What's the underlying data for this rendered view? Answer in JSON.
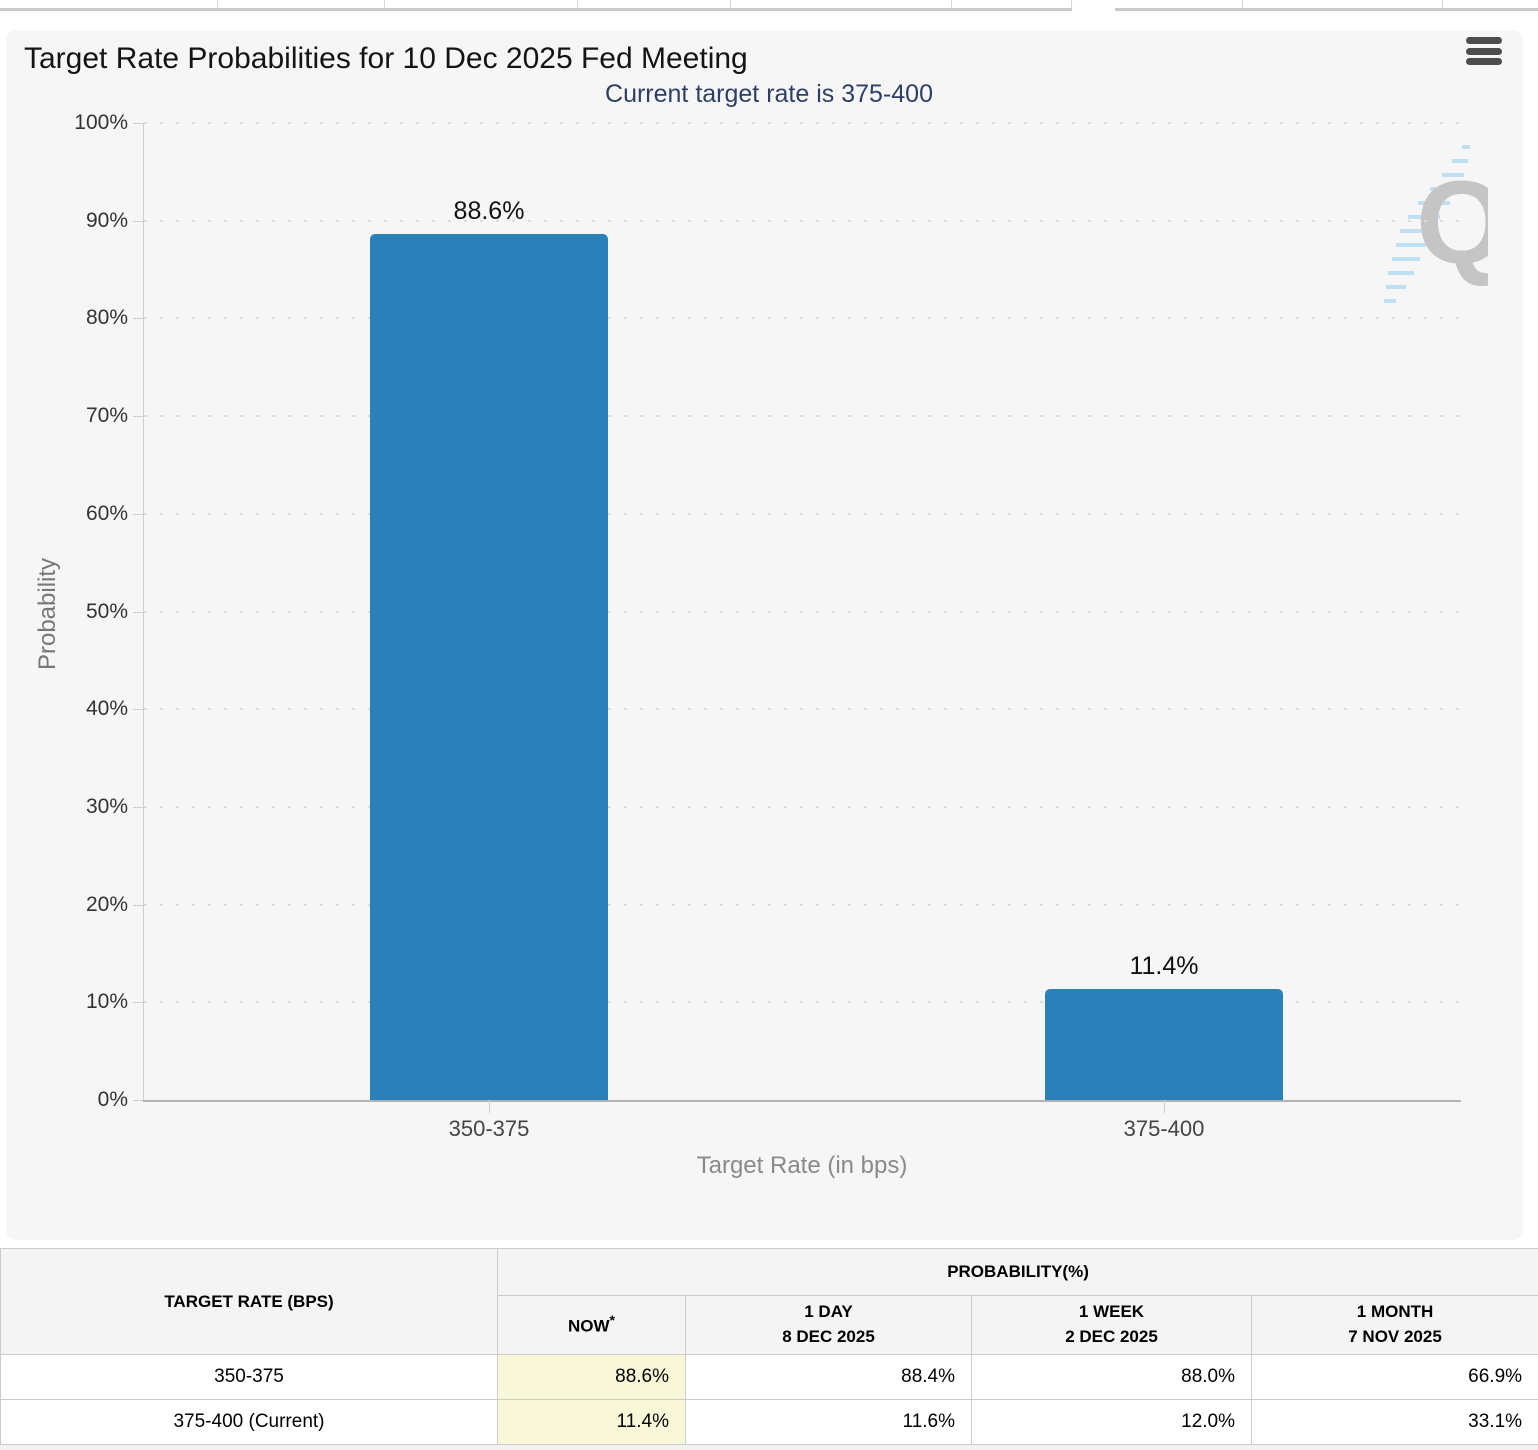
{
  "accent_colors": {
    "bar_blue": "#2a80b9",
    "subtitle_navy": "#2e3f66",
    "highlight_yellow": "#f8f8d8"
  },
  "menu": {
    "icon": "hamburger-icon"
  },
  "chart_data": {
    "type": "bar",
    "title": "Target Rate Probabilities for 10 Dec 2025 Fed Meeting",
    "subtitle": "Current target rate is 375-400",
    "categories": [
      "350-375",
      "375-400"
    ],
    "values": [
      88.6,
      11.4
    ],
    "bar_labels": [
      "88.6%",
      "11.4%"
    ],
    "xlabel": "Target Rate (in bps)",
    "ylabel": "Probability",
    "ylim": [
      0,
      100
    ],
    "ytick_step": 10,
    "ytick_labels": [
      "0%",
      "10%",
      "20%",
      "30%",
      "40%",
      "50%",
      "60%",
      "70%",
      "80%",
      "90%",
      "100%"
    ],
    "grid": "dotted horizontal gridlines, legend off",
    "bar_color": "#2a80b9",
    "watermark": "Q logo watermark"
  },
  "table": {
    "rate_header": "TARGET RATE (BPS)",
    "group_header": "PROBABILITY(%)",
    "columns": [
      {
        "label": "NOW",
        "note": "*",
        "date": ""
      },
      {
        "label": "1 DAY",
        "note": "",
        "date": "8 DEC 2025"
      },
      {
        "label": "1 WEEK",
        "note": "",
        "date": "2 DEC 2025"
      },
      {
        "label": "1 MONTH",
        "note": "",
        "date": "7 NOV 2025"
      }
    ],
    "rows": [
      {
        "rate": "350-375",
        "now": "88.6%",
        "day": "88.4%",
        "week": "88.0%",
        "month": "66.9%"
      },
      {
        "rate": "375-400 (Current)",
        "now": "11.4%",
        "day": "11.6%",
        "week": "12.0%",
        "month": "33.1%"
      }
    ]
  }
}
